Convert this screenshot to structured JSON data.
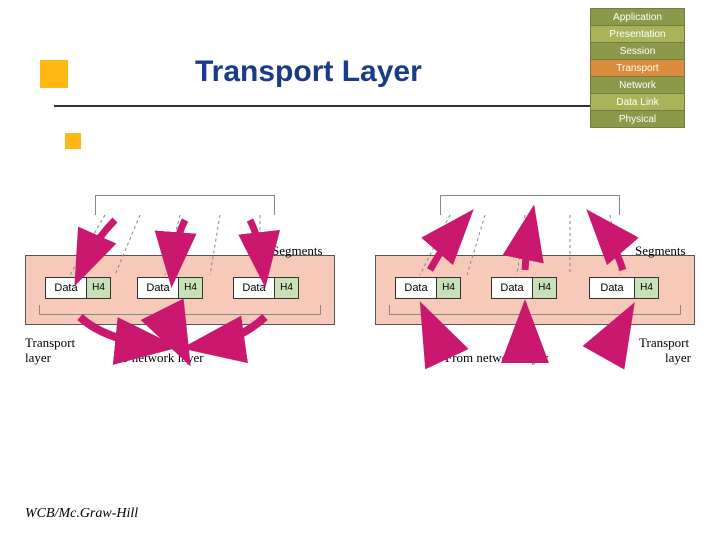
{
  "title": "Transport Layer",
  "footer": "WCB/Mc.Graw-Hill",
  "osi": {
    "layers": [
      {
        "name": "Application",
        "bg": "#8a9a4a"
      },
      {
        "name": "Presentation",
        "bg": "#a8b35a"
      },
      {
        "name": "Session",
        "bg": "#8a9a4a"
      },
      {
        "name": "Transport",
        "bg": "#d98b3e"
      },
      {
        "name": "Network",
        "bg": "#8a9a4a"
      },
      {
        "name": "Data Link",
        "bg": "#a8b35a"
      },
      {
        "name": "Physical",
        "bg": "#8a9a4a"
      }
    ]
  },
  "diagram": {
    "layer_fill": "#f7c9b8",
    "header_fill": "#c8e0b8",
    "arrow_color": "#c9186e",
    "arrow_highlight": "#ffffff",
    "segment_label": "Segments",
    "data_label": "Data",
    "header_label": "H4",
    "left": {
      "caption1": "Transport",
      "caption2": "layer",
      "bottom_label": "To network layer"
    },
    "right": {
      "caption1": "Transport",
      "caption2": "layer",
      "bottom_label": "From network layer"
    }
  }
}
